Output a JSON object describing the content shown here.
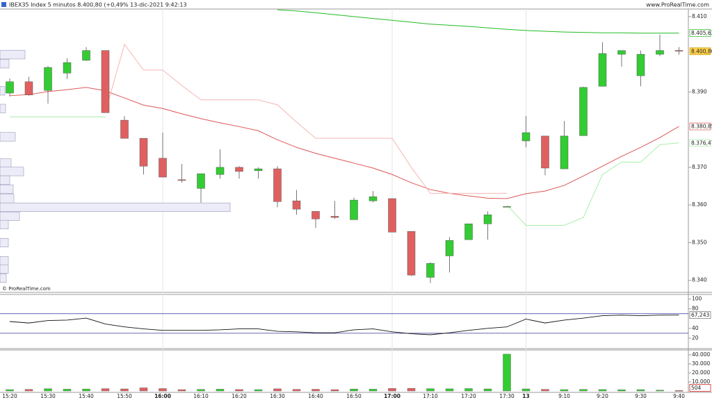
{
  "header": {
    "title": "IBEX35 Index 5 minutos 8.400,80 (+0,49% 13-dic-2021 9:42:13",
    "site": "www.ProRealTime.com"
  },
  "watermark": "© ProRealTime.com",
  "chart_data": [
    {
      "type": "candlestick",
      "categories": [
        "15:20",
        null,
        "15:30",
        null,
        "15:40",
        null,
        "15:50",
        null,
        "16:00",
        null,
        "16:10",
        null,
        "16:20",
        null,
        "16:30",
        null,
        "16:40",
        null,
        "16:50",
        null,
        "17:00",
        null,
        "17:10",
        null,
        "17:20",
        null,
        "17:30",
        "13",
        null,
        "9:10",
        null,
        "9:20",
        null,
        "9:30",
        null,
        "9:40"
      ],
      "open": [
        8389.7,
        8392.7,
        8390.4,
        8395,
        8398.4,
        8401,
        8382.5,
        8377.7,
        8372.4,
        8366.7,
        8364.4,
        8368.1,
        8370,
        8369.1,
        8369.6,
        8361.1,
        8358.3,
        8357,
        8356.1,
        8361.1,
        8361.7,
        8353,
        8340.8,
        8346.5,
        8350.8,
        8355,
        8359.6,
        8377,
        8378.3,
        8369.6,
        8378.4,
        8391.5,
        8400,
        8394.3,
        8400,
        8401
      ],
      "high": [
        8393.6,
        8394,
        8396.9,
        8398.9,
        8401.9,
        8401,
        8383.6,
        8377.7,
        8379.2,
        8370.9,
        8368.3,
        8374.8,
        8370.3,
        8370,
        8370.3,
        8364,
        8358.3,
        8361.1,
        8362,
        8363.7,
        8361.7,
        8353,
        8344.8,
        8351.5,
        8355,
        8358.3,
        8359.6,
        8383.6,
        8378.3,
        8382.3,
        8391.4,
        8403.2,
        8401,
        8401,
        8405.2,
        8401.9
      ],
      "low": [
        8388.8,
        8389,
        8386.9,
        8393.4,
        8398.2,
        8384.5,
        8377.7,
        8368.1,
        8367.4,
        8365.9,
        8360.6,
        8367,
        8367,
        8367,
        8359.4,
        8357.4,
        8353.9,
        8356.3,
        8356.1,
        8360.7,
        8352.8,
        8341.2,
        8339.3,
        8342.1,
        8350.8,
        8350.8,
        8359.6,
        8375.3,
        8367.9,
        8369.6,
        8378.4,
        8391.5,
        8396.7,
        8391.5,
        8399.5,
        8399.9
      ],
      "close": [
        8392.7,
        8389.2,
        8396.5,
        8397.8,
        8401,
        8384.5,
        8377.7,
        8370.3,
        8367.4,
        8366.5,
        8368.3,
        8370,
        8368.9,
        8369.6,
        8360.9,
        8358.9,
        8356.3,
        8356.7,
        8361.3,
        8362.2,
        8352.8,
        8341.4,
        8344.5,
        8350.6,
        8355,
        8357.4,
        8359.6,
        8379.2,
        8369.8,
        8378.3,
        8391.2,
        8400.2,
        8401,
        8400,
        8401,
        8400.8
      ],
      "last_label": "8.400,80",
      "up_color": "#33cc33",
      "down_color": "#e06060",
      "ylim": [
        8337,
        8412
      ],
      "yticks": [
        {
          "value": 8410,
          "label": "8.410"
        },
        {
          "value": 8390,
          "label": "8.390"
        },
        {
          "value": 8370,
          "label": "8.370"
        },
        {
          "value": 8360,
          "label": "8.360"
        },
        {
          "value": 8350,
          "label": "8.350"
        },
        {
          "value": 8340,
          "label": "8.340"
        }
      ],
      "overlays": [
        {
          "color": "#22bb22",
          "last_label": "8.405,63",
          "values": [
            null,
            null,
            null,
            null,
            null,
            null,
            null,
            null,
            null,
            null,
            null,
            null,
            null,
            null,
            8411.8,
            8411.5,
            8411,
            8410.5,
            8410,
            8409.5,
            8409,
            8408.5,
            8408,
            8407.7,
            8407.4,
            8407,
            8406.6,
            8406.3,
            8406.1,
            8405.9,
            8405.8,
            8405.7,
            8405.7,
            8405.6,
            8405.6,
            8405.63
          ]
        },
        {
          "color": "#dd5555",
          "last_label": "8.380,85",
          "values": [
            8389,
            8389.3,
            8390.1,
            8390.6,
            8391.2,
            8390.3,
            8388.4,
            8386.5,
            8385.6,
            8384.2,
            8382.9,
            8381.8,
            8380.8,
            8379.7,
            8377.3,
            8375.3,
            8373.7,
            8372.4,
            8371.1,
            8369.8,
            8368.1,
            8365.9,
            8364.1,
            8363.1,
            8362.4,
            8361.8,
            8361.7,
            8363,
            8363.7,
            8365.2,
            8367.7,
            8370.3,
            8372.9,
            8375.3,
            8377.9,
            8380.85
          ]
        },
        {
          "color": "#f5b5b5",
          "values": [
            null,
            null,
            null,
            null,
            null,
            8384.7,
            8402.6,
            8395.8,
            8395.8,
            8391.7,
            8387.9,
            8387.9,
            8387.9,
            8387.9,
            8386.6,
            8382,
            8377.7,
            8377.7,
            8377.7,
            8377.7,
            8377.7,
            8370,
            8363.1,
            8363.1,
            8363.1,
            8363.1,
            8363.1,
            null,
            null,
            null,
            null,
            null,
            null,
            null,
            null,
            null
          ]
        },
        {
          "color": "#a8eea8",
          "last_label": "8.376,47",
          "values": [
            8383.4,
            8383.4,
            8383.4,
            8383.4,
            8383.4,
            8383.4,
            null,
            null,
            null,
            null,
            null,
            null,
            null,
            null,
            null,
            null,
            null,
            null,
            null,
            null,
            null,
            null,
            null,
            null,
            null,
            null,
            8360,
            8354.6,
            8354.6,
            8354.6,
            8356.7,
            8368.1,
            8371.4,
            8371.4,
            8376,
            8376.47
          ]
        }
      ],
      "volume_profile": {
        "price_levels": [
          8399.9,
          8397.5,
          8390.3,
          8385.6,
          8378.1,
          8371.1,
          8368.9,
          8366.6,
          8364.2,
          8361.7,
          8359.4,
          8357,
          8354.8,
          8350,
          8345.2,
          8343,
          8340.6
        ],
        "values": [
          36,
          13,
          7,
          8,
          22,
          16,
          34,
          14,
          19,
          20,
          331,
          28,
          12,
          12,
          12,
          12,
          9
        ],
        "color": "#ececf8"
      }
    },
    {
      "type": "line",
      "color": "#111111",
      "value_label": "67,243",
      "values": [
        54,
        51,
        56,
        57,
        61,
        49,
        43,
        39,
        36,
        36,
        36,
        37,
        39,
        39,
        34,
        33,
        31,
        31,
        37,
        39,
        33,
        29,
        27,
        31,
        36,
        40,
        43,
        59,
        51,
        57,
        61,
        66,
        67,
        66,
        67,
        67.243
      ],
      "levels": [
        70,
        30
      ],
      "level_color": "#333399",
      "ylim": [
        0,
        108
      ],
      "yticks": [
        100,
        80,
        40,
        20
      ]
    },
    {
      "type": "bar",
      "value_label": "504",
      "values": [
        1500,
        1800,
        2500,
        2000,
        2200,
        2600,
        2300,
        3500,
        2700,
        1500,
        1800,
        2000,
        1600,
        1500,
        2400,
        1800,
        1900,
        1500,
        2200,
        2000,
        2800,
        3000,
        2600,
        2400,
        2700,
        2300,
        40800,
        2300,
        1800,
        1500,
        1700,
        1600,
        1400,
        1500,
        900,
        504
      ],
      "ylim": [
        0,
        44600
      ],
      "yticks": [
        {
          "value": 40000,
          "label": "40.000"
        },
        {
          "value": 30000,
          "label": "30.000"
        },
        {
          "value": 20000,
          "label": "20.000"
        },
        {
          "value": 10000,
          "label": "10.000"
        }
      ]
    }
  ]
}
